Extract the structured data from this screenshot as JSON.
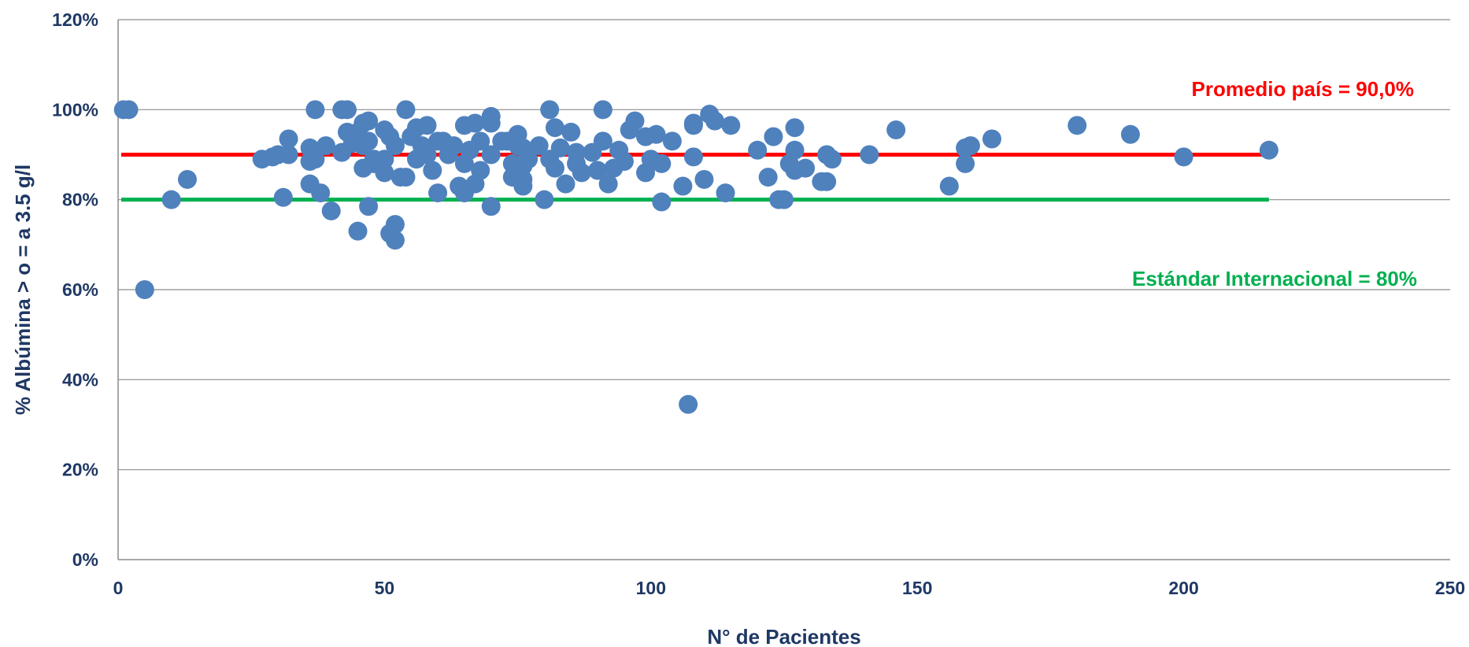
{
  "chart_data": {
    "type": "scatter",
    "xlabel": "N° de Pacientes",
    "ylabel": "% Albúmina > o = a 3.5 g/l",
    "xlim": [
      0,
      250
    ],
    "ylim": [
      0,
      120
    ],
    "x_ticks": [
      "0",
      "50",
      "100",
      "150",
      "200",
      "250"
    ],
    "y_ticks": [
      "0%",
      "20%",
      "40%",
      "60%",
      "80%",
      "100%",
      "120%"
    ],
    "grid": "horizontal",
    "marker_color": "#4f81bd",
    "reference_lines": [
      {
        "label": "Promedio país = 90,0%",
        "y": 90,
        "x_range": [
          0,
          216
        ],
        "color": "#ff0000"
      },
      {
        "label": "Estándar Internacional = 80%",
        "y": 80,
        "x_range": [
          0,
          216
        ],
        "color": "#00b050"
      }
    ],
    "series": [
      {
        "points": [
          [
            1,
            100
          ],
          [
            2,
            100
          ],
          [
            5,
            60
          ],
          [
            10,
            80
          ],
          [
            13,
            84.5
          ],
          [
            27,
            89
          ],
          [
            29,
            89.5
          ],
          [
            30,
            90
          ],
          [
            31,
            80.5
          ],
          [
            32,
            93.5
          ],
          [
            32,
            90
          ],
          [
            36,
            91.5
          ],
          [
            36,
            88.5
          ],
          [
            36,
            83.5
          ],
          [
            37,
            100
          ],
          [
            37,
            89
          ],
          [
            38,
            81.5
          ],
          [
            39,
            92
          ],
          [
            40,
            77.5
          ],
          [
            42,
            100
          ],
          [
            42,
            90.5
          ],
          [
            43,
            100
          ],
          [
            43,
            95
          ],
          [
            44,
            92.5
          ],
          [
            45,
            73
          ],
          [
            45,
            95
          ],
          [
            46,
            97
          ],
          [
            46,
            87
          ],
          [
            46,
            92
          ],
          [
            47,
            97.5
          ],
          [
            47,
            78.5
          ],
          [
            47,
            93
          ],
          [
            48,
            89
          ],
          [
            48,
            88
          ],
          [
            50,
            95.5
          ],
          [
            50,
            89
          ],
          [
            50,
            86
          ],
          [
            51,
            72.5
          ],
          [
            51,
            94
          ],
          [
            52,
            71
          ],
          [
            52,
            74.5
          ],
          [
            52,
            92
          ],
          [
            53,
            85
          ],
          [
            54,
            85
          ],
          [
            54,
            100
          ],
          [
            55,
            94
          ],
          [
            56,
            96
          ],
          [
            56,
            89
          ],
          [
            57,
            92
          ],
          [
            58,
            96.5
          ],
          [
            58,
            90
          ],
          [
            59,
            86.5
          ],
          [
            60,
            81.5
          ],
          [
            60,
            93
          ],
          [
            61,
            93
          ],
          [
            62,
            90
          ],
          [
            63,
            92
          ],
          [
            64,
            83
          ],
          [
            65,
            96.5
          ],
          [
            65,
            88
          ],
          [
            65,
            81.5
          ],
          [
            66,
            91
          ],
          [
            67,
            97
          ],
          [
            67,
            83.5
          ],
          [
            68,
            86.5
          ],
          [
            68,
            93
          ],
          [
            70,
            98.5
          ],
          [
            70,
            97
          ],
          [
            70,
            90
          ],
          [
            70,
            78.5
          ],
          [
            72,
            93
          ],
          [
            73,
            93
          ],
          [
            74,
            88
          ],
          [
            74,
            85
          ],
          [
            75,
            94.5
          ],
          [
            75,
            92
          ],
          [
            76,
            91.5
          ],
          [
            76,
            87.5
          ],
          [
            76,
            84.5
          ],
          [
            76,
            83
          ],
          [
            77,
            89
          ],
          [
            79,
            92
          ],
          [
            80,
            80
          ],
          [
            81,
            100
          ],
          [
            81,
            89
          ],
          [
            82,
            96
          ],
          [
            82,
            87
          ],
          [
            83,
            91.5
          ],
          [
            84,
            83.5
          ],
          [
            85,
            95
          ],
          [
            86,
            88
          ],
          [
            86,
            90.5
          ],
          [
            87,
            86
          ],
          [
            89,
            90.5
          ],
          [
            90,
            86.5
          ],
          [
            91,
            100
          ],
          [
            91,
            93
          ],
          [
            92,
            83.5
          ],
          [
            93,
            87
          ],
          [
            94,
            91
          ],
          [
            95,
            88.5
          ],
          [
            96,
            95.5
          ],
          [
            97,
            97.5
          ],
          [
            99,
            94
          ],
          [
            99,
            86
          ],
          [
            100,
            89
          ],
          [
            101,
            94.5
          ],
          [
            102,
            88
          ],
          [
            102,
            79.5
          ],
          [
            104,
            93
          ],
          [
            106,
            83
          ],
          [
            107,
            34.5
          ],
          [
            108,
            97
          ],
          [
            108,
            96.5
          ],
          [
            108,
            89.5
          ],
          [
            110,
            84.5
          ],
          [
            111,
            99
          ],
          [
            112,
            97.5
          ],
          [
            114,
            81.5
          ],
          [
            115,
            96.5
          ],
          [
            120,
            91
          ],
          [
            122,
            85
          ],
          [
            123,
            94
          ],
          [
            124,
            80
          ],
          [
            125,
            80
          ],
          [
            126,
            88
          ],
          [
            127,
            96
          ],
          [
            127,
            91
          ],
          [
            127,
            86.5
          ],
          [
            129,
            87
          ],
          [
            132,
            84
          ],
          [
            133,
            84
          ],
          [
            133,
            90
          ],
          [
            134,
            89
          ],
          [
            141,
            90
          ],
          [
            146,
            95.5
          ],
          [
            156,
            83
          ],
          [
            159,
            91.5
          ],
          [
            159,
            88
          ],
          [
            160,
            92
          ],
          [
            164,
            93.5
          ],
          [
            180,
            96.5
          ],
          [
            190,
            94.5
          ],
          [
            200,
            89.5
          ],
          [
            216,
            91
          ]
        ]
      }
    ]
  }
}
